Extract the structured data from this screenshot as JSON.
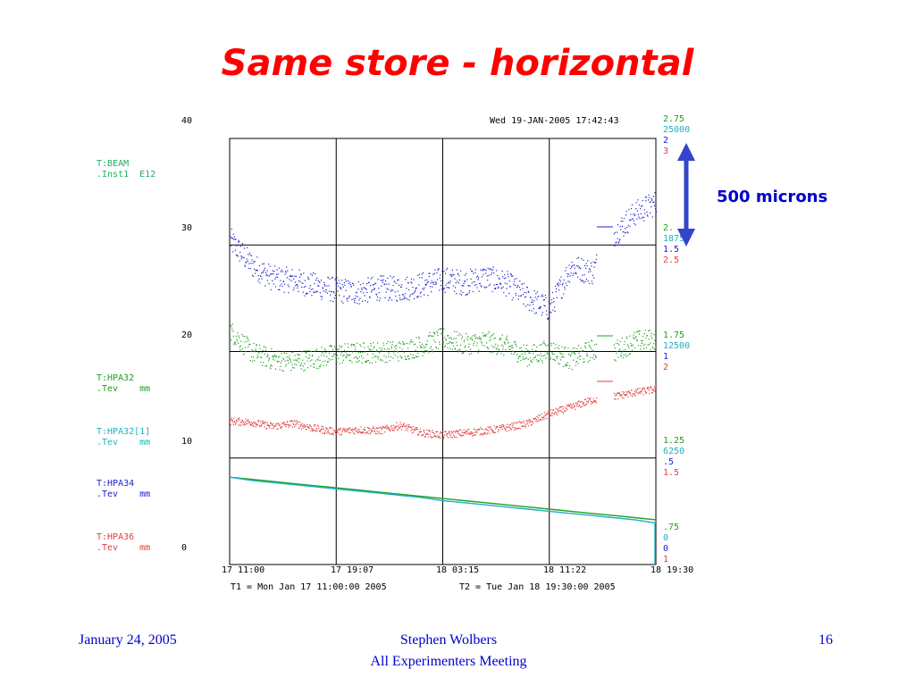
{
  "slide": {
    "title": "Same store - horizontal",
    "footer_left": "January 24, 2005",
    "footer_center_1": "Stephen Wolbers",
    "footer_center_2": "All Experimenters Meeting",
    "footer_right": "16",
    "annotation": "500 microns"
  },
  "colors": {
    "title": "#ff0000",
    "footer": "#0000cc",
    "series1": "#2020d0",
    "series2": "#20a020",
    "series3": "#e04040",
    "series4": "#20b0c0",
    "series4b": "#20a020"
  },
  "chart_data": {
    "type": "scatter",
    "timestamp": "Wed 19-JAN-2005 17:42:43",
    "x_ticks": [
      "17 11:00",
      "17 19:07",
      "18 03:15",
      "18 11:22",
      "18 19:30"
    ],
    "t1": "T1 = Mon Jan 17 11:00:00 2005",
    "t2": "T2 = Tue Jan 18 19:30:00 2005",
    "left_axis": {
      "ticks": [
        "40",
        "30",
        "20",
        "10",
        "0"
      ],
      "range": [
        0,
        40
      ]
    },
    "right_axes": [
      {
        "labels": [
          "2.75",
          "25000",
          "2",
          "3"
        ]
      },
      {
        "labels": [
          "2.",
          "18750",
          "1.5",
          "2.5"
        ]
      },
      {
        "labels": [
          "1.75",
          "12500",
          "1",
          "2"
        ]
      },
      {
        "labels": [
          "1.25",
          "6250",
          ".5",
          "1.5"
        ]
      },
      {
        "labels": [
          ".75",
          "0",
          "0",
          "1"
        ]
      }
    ],
    "series_labels": [
      {
        "line1": "T:BEAM",
        "line2": ".Inst1  E12"
      },
      {
        "line1": "T:HPA32",
        "line2": ".Tev    mm"
      },
      {
        "line1": "T:HPA32[1]",
        "line2": ".Tev    mm"
      },
      {
        "line1": "T:HPA34",
        "line2": ".Tev    mm"
      },
      {
        "line1": "T:HPA36",
        "line2": ".Tev    mm"
      }
    ],
    "x": [
      0,
      0.05,
      0.1,
      0.15,
      0.2,
      0.25,
      0.3,
      0.35,
      0.4,
      0.45,
      0.5,
      0.55,
      0.6,
      0.65,
      0.7,
      0.75,
      0.8,
      0.85,
      0.9,
      0.95,
      1.0
    ],
    "series": [
      {
        "values": [
          30.5,
          28.2,
          26.9,
          26.7,
          26.2,
          25.8,
          25.6,
          26.0,
          25.9,
          26.3,
          26.8,
          26.5,
          27.0,
          26.4,
          25.0,
          24.0,
          28.0,
          27.5,
          31.0,
          33.0,
          34.0
        ]
      },
      {
        "values": [
          22.0,
          20.0,
          19.3,
          19.1,
          19.4,
          19.8,
          19.9,
          20.0,
          20.1,
          20.6,
          21.3,
          20.7,
          21.0,
          20.5,
          19.6,
          20.2,
          19.3,
          20.2,
          20.0,
          21.0,
          21.2
        ]
      },
      {
        "values": [
          13.5,
          13.4,
          13.0,
          13.3,
          12.8,
          12.5,
          12.7,
          12.6,
          13.1,
          12.4,
          12.2,
          12.4,
          12.6,
          12.9,
          13.3,
          14.2,
          14.8,
          15.5,
          15.8,
          16.2,
          16.5
        ]
      },
      {
        "values": [
          8.2,
          8.0,
          7.8,
          7.6,
          7.4,
          7.2,
          7.0,
          6.8,
          6.6,
          6.4,
          6.2,
          6.0,
          5.8,
          5.6,
          5.4,
          5.2,
          5.0,
          4.8,
          4.6,
          4.4,
          4.2
        ]
      },
      {
        "values": [
          8.2,
          7.9,
          7.7,
          7.5,
          7.3,
          7.1,
          6.9,
          6.7,
          6.5,
          6.3,
          6.0,
          5.8,
          5.6,
          5.4,
          5.2,
          5.0,
          4.8,
          4.6,
          4.4,
          4.2,
          3.9
        ]
      }
    ]
  }
}
